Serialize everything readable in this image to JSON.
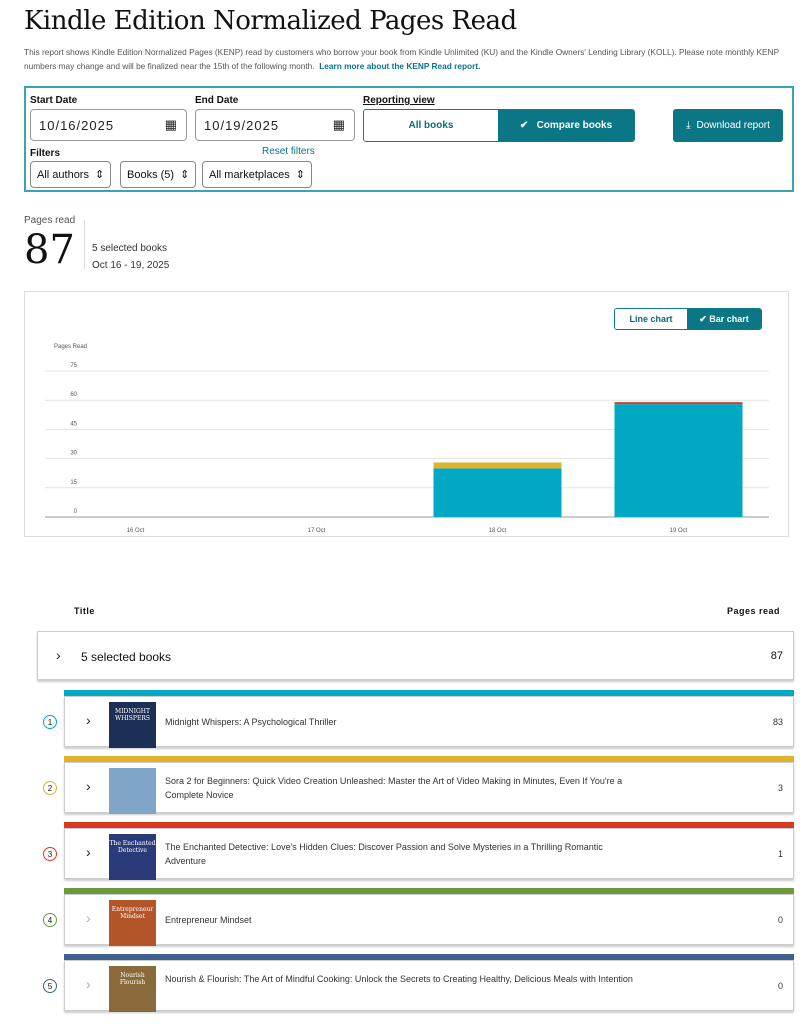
{
  "header": {
    "title": "Kindle Edition Normalized Pages Read",
    "description": "This report shows Kindle Edition Normalized Pages (KENP) read by customers who borrow your book from Kindle Unlimited (KU) and the Kindle Owners' Lending Library (KOLL). Please note monthly KENP numbers may change and will be finalized near the 15th of the following month.",
    "learn_more": "Learn more about the KENP Read report."
  },
  "filters": {
    "start_label": "Start Date",
    "start_value": "10/16/2025",
    "end_label": "End Date",
    "end_value": "10/19/2025",
    "view_label": "Reporting view",
    "view_all": "All books",
    "view_compare": "Compare books",
    "download": "Download report",
    "filters_label": "Filters",
    "reset": "Reset filters",
    "authors": "All authors",
    "books": "Books (5)",
    "marketplaces": "All marketplaces"
  },
  "summary": {
    "label": "Pages read",
    "value": "87",
    "books": "5 selected books",
    "range": "Oct 16 - 19, 2025"
  },
  "chart_toggle": {
    "line": "Line chart",
    "bar": "Bar chart"
  },
  "chart_data": {
    "type": "bar",
    "stacked": true,
    "ylabel": "Pages Read",
    "ylim": [
      0,
      75
    ],
    "yticks": [
      0,
      15,
      30,
      45,
      60,
      75
    ],
    "grid": true,
    "categories": [
      "16 Oct",
      "17 Oct",
      "18 Oct",
      "19 Oct"
    ],
    "series": [
      {
        "values": [
          0,
          0,
          25,
          58
        ],
        "color": "#00a8c3"
      },
      {
        "values": [
          0,
          0,
          3,
          0
        ],
        "color": "#e0b12a"
      },
      {
        "values": [
          0,
          0,
          0,
          1
        ],
        "color": "#d9391f"
      },
      {
        "values": [
          0,
          0,
          0,
          0
        ],
        "color": "#6a9a3a"
      },
      {
        "values": [
          0,
          0,
          0,
          0
        ],
        "color": "#3f5f8f"
      }
    ]
  },
  "table": {
    "col_title": "Title",
    "col_pages": "Pages read",
    "total_label": "5 selected books",
    "total_value": "87",
    "books": [
      {
        "n": "1",
        "title": "Midnight Whispers: A Psychological Thriller",
        "pages": "83",
        "color": "#00a8c3",
        "cover_text": "MIDNIGHT WHISPERS",
        "cover_bg": "#1c2f55"
      },
      {
        "n": "2",
        "title": "Sora 2 for Beginners: Quick Video Creation Unleashed: Master the Art of Video Making in Minutes, Even If You're a Complete Novice",
        "pages": "3",
        "color": "#e0b12a",
        "cover_text": "",
        "cover_bg": "#7fa6c8"
      },
      {
        "n": "3",
        "title": "The Enchanted Detective: Love's Hidden Clues: Discover Passion and Solve Mysteries in a Thrilling Romantic Adventure",
        "pages": "1",
        "color": "#d9391f",
        "cover_text": "The Enchanted Detective",
        "cover_bg": "#2a3b7a"
      },
      {
        "n": "4",
        "title": "Entrepreneur Mindset",
        "pages": "0",
        "color": "#6a9a3a",
        "cover_text": "Entrepreneur Mindset",
        "cover_bg": "#b2562a"
      },
      {
        "n": "5",
        "title": "Nourish & Flourish: The Art of Mindful Cooking: Unlock the Secrets to Creating Healthy, Delicious Meals with Intention",
        "pages": "0",
        "color": "#3f5f8f",
        "cover_text": "Nourish Flourish",
        "cover_bg": "#8a6a3a"
      }
    ]
  }
}
